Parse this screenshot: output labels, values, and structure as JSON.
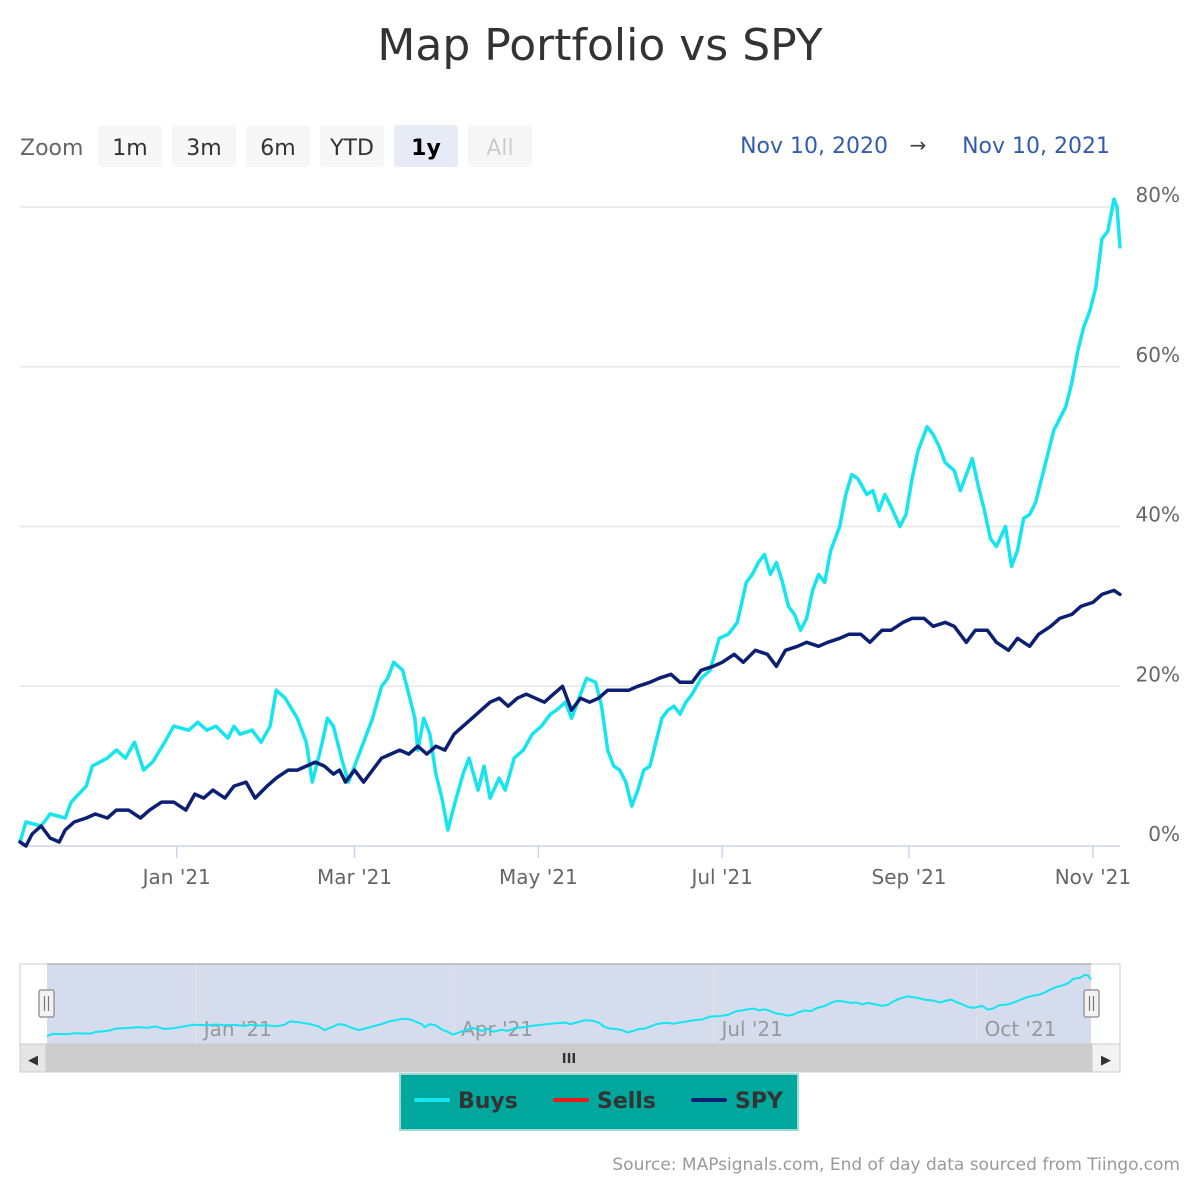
{
  "chart_data": {
    "type": "line",
    "title": "Map Portfolio vs SPY",
    "xlabel": "",
    "ylabel": "",
    "ylim": [
      0,
      80
    ],
    "y_ticks": [
      "0%",
      "20%",
      "40%",
      "60%",
      "80%"
    ],
    "x_ticks": [
      "Jan '21",
      "Mar '21",
      "May '21",
      "Jul '21",
      "Sep '21",
      "Nov '21"
    ],
    "legend_position": "bottom-center",
    "grid": true,
    "series": [
      {
        "name": "Buys",
        "color": "#15e5ee",
        "points": [
          [
            "2020-11-10",
            0.5
          ],
          [
            "2020-11-12",
            3
          ],
          [
            "2020-11-17",
            2.5
          ],
          [
            "2020-11-20",
            4
          ],
          [
            "2020-11-25",
            3.5
          ],
          [
            "2020-11-27",
            5.5
          ],
          [
            "2020-12-02",
            7.5
          ],
          [
            "2020-12-04",
            10
          ],
          [
            "2020-12-09",
            11
          ],
          [
            "2020-12-12",
            12
          ],
          [
            "2020-12-15",
            11
          ],
          [
            "2020-12-18",
            13
          ],
          [
            "2020-12-21",
            9.5
          ],
          [
            "2020-12-24",
            10.5
          ],
          [
            "2020-12-28",
            13
          ],
          [
            "2020-12-31",
            15
          ],
          [
            "2021-01-05",
            14.5
          ],
          [
            "2021-01-08",
            15.5
          ],
          [
            "2021-01-11",
            14.5
          ],
          [
            "2021-01-14",
            15
          ],
          [
            "2021-01-18",
            13.5
          ],
          [
            "2021-01-20",
            15
          ],
          [
            "2021-01-22",
            14
          ],
          [
            "2021-01-26",
            14.5
          ],
          [
            "2021-01-29",
            13
          ],
          [
            "2021-02-01",
            15
          ],
          [
            "2021-02-03",
            19.5
          ],
          [
            "2021-02-06",
            18.5
          ],
          [
            "2021-02-10",
            16
          ],
          [
            "2021-02-13",
            13
          ],
          [
            "2021-02-15",
            8
          ],
          [
            "2021-02-18",
            12.5
          ],
          [
            "2021-02-20",
            16
          ],
          [
            "2021-02-22",
            15
          ],
          [
            "2021-02-25",
            10.5
          ],
          [
            "2021-02-27",
            8
          ],
          [
            "2021-03-01",
            10
          ],
          [
            "2021-03-04",
            13
          ],
          [
            "2021-03-07",
            16
          ],
          [
            "2021-03-10",
            20
          ],
          [
            "2021-03-12",
            21
          ],
          [
            "2021-03-14",
            23
          ],
          [
            "2021-03-17",
            22
          ],
          [
            "2021-03-19",
            19
          ],
          [
            "2021-03-21",
            16
          ],
          [
            "2021-03-22",
            12
          ],
          [
            "2021-03-24",
            16
          ],
          [
            "2021-03-26",
            14
          ],
          [
            "2021-03-28",
            9
          ],
          [
            "2021-03-30",
            6
          ],
          [
            "2021-04-01",
            2
          ],
          [
            "2021-04-03",
            5
          ],
          [
            "2021-04-06",
            9
          ],
          [
            "2021-04-08",
            11
          ],
          [
            "2021-04-11",
            7
          ],
          [
            "2021-04-13",
            10
          ],
          [
            "2021-04-15",
            6
          ],
          [
            "2021-04-18",
            8.5
          ],
          [
            "2021-04-20",
            7
          ],
          [
            "2021-04-23",
            11
          ],
          [
            "2021-04-26",
            12
          ],
          [
            "2021-04-29",
            14
          ],
          [
            "2021-05-02",
            15
          ],
          [
            "2021-05-05",
            16.5
          ],
          [
            "2021-05-07",
            17
          ],
          [
            "2021-05-10",
            18
          ],
          [
            "2021-05-12",
            16
          ],
          [
            "2021-05-14",
            18
          ],
          [
            "2021-05-17",
            21
          ],
          [
            "2021-05-20",
            20.5
          ],
          [
            "2021-05-22",
            17.5
          ],
          [
            "2021-05-24",
            12
          ],
          [
            "2021-05-26",
            10
          ],
          [
            "2021-05-28",
            9.5
          ],
          [
            "2021-05-30",
            8
          ],
          [
            "2021-06-01",
            5
          ],
          [
            "2021-06-03",
            7
          ],
          [
            "2021-06-05",
            9.5
          ],
          [
            "2021-06-07",
            10
          ],
          [
            "2021-06-09",
            13
          ],
          [
            "2021-06-11",
            16
          ],
          [
            "2021-06-13",
            17
          ],
          [
            "2021-06-15",
            17.5
          ],
          [
            "2021-06-17",
            16.5
          ],
          [
            "2021-06-19",
            18
          ],
          [
            "2021-06-21",
            19
          ],
          [
            "2021-06-24",
            21
          ],
          [
            "2021-06-27",
            22
          ],
          [
            "2021-06-30",
            26
          ],
          [
            "2021-07-03",
            26.5
          ],
          [
            "2021-07-06",
            28
          ],
          [
            "2021-07-09",
            33
          ],
          [
            "2021-07-11",
            34
          ],
          [
            "2021-07-13",
            35.5
          ],
          [
            "2021-07-15",
            36.5
          ],
          [
            "2021-07-17",
            34
          ],
          [
            "2021-07-19",
            35.5
          ],
          [
            "2021-07-21",
            33
          ],
          [
            "2021-07-23",
            30
          ],
          [
            "2021-07-25",
            29
          ],
          [
            "2021-07-27",
            27
          ],
          [
            "2021-07-29",
            28.5
          ],
          [
            "2021-07-31",
            32
          ],
          [
            "2021-08-02",
            34
          ],
          [
            "2021-08-04",
            33
          ],
          [
            "2021-08-06",
            37
          ],
          [
            "2021-08-09",
            40
          ],
          [
            "2021-08-11",
            44
          ],
          [
            "2021-08-13",
            46.5
          ],
          [
            "2021-08-15",
            46
          ],
          [
            "2021-08-18",
            44
          ],
          [
            "2021-08-20",
            44.5
          ],
          [
            "2021-08-22",
            42
          ],
          [
            "2021-08-24",
            44
          ],
          [
            "2021-08-26",
            42.5
          ],
          [
            "2021-08-29",
            40
          ],
          [
            "2021-08-31",
            41.5
          ],
          [
            "2021-09-02",
            46
          ],
          [
            "2021-09-04",
            49.5
          ],
          [
            "2021-09-07",
            52.5
          ],
          [
            "2021-09-09",
            51.5
          ],
          [
            "2021-09-11",
            50
          ],
          [
            "2021-09-13",
            48
          ],
          [
            "2021-09-16",
            47
          ],
          [
            "2021-09-18",
            44.5
          ],
          [
            "2021-09-20",
            46.5
          ],
          [
            "2021-09-22",
            48.5
          ],
          [
            "2021-09-24",
            45
          ],
          [
            "2021-09-26",
            42
          ],
          [
            "2021-09-28",
            38.5
          ],
          [
            "2021-09-30",
            37.5
          ],
          [
            "2021-10-03",
            40
          ],
          [
            "2021-10-05",
            35
          ],
          [
            "2021-10-07",
            37
          ],
          [
            "2021-10-09",
            41
          ],
          [
            "2021-10-11",
            41.5
          ],
          [
            "2021-10-13",
            43
          ],
          [
            "2021-10-15",
            46
          ],
          [
            "2021-10-17",
            49
          ],
          [
            "2021-10-19",
            52
          ],
          [
            "2021-10-21",
            53.5
          ],
          [
            "2021-10-23",
            55
          ],
          [
            "2021-10-25",
            58
          ],
          [
            "2021-10-27",
            62
          ],
          [
            "2021-10-29",
            65
          ],
          [
            "2021-10-31",
            67
          ],
          [
            "2021-11-02",
            70
          ],
          [
            "2021-11-04",
            76
          ],
          [
            "2021-11-06",
            77
          ],
          [
            "2021-11-08",
            81
          ],
          [
            "2021-11-09",
            80
          ],
          [
            "2021-11-10",
            75
          ]
        ]
      },
      {
        "name": "Sells",
        "color": "#e81b1b",
        "points": []
      },
      {
        "name": "SPY",
        "color": "#0d1f73",
        "points": [
          [
            "2020-11-10",
            0.5
          ],
          [
            "2020-11-12",
            0
          ],
          [
            "2020-11-14",
            1.5
          ],
          [
            "2020-11-17",
            2.5
          ],
          [
            "2020-11-20",
            1
          ],
          [
            "2020-11-23",
            0.5
          ],
          [
            "2020-11-25",
            2
          ],
          [
            "2020-11-28",
            3
          ],
          [
            "2020-12-02",
            3.5
          ],
          [
            "2020-12-05",
            4
          ],
          [
            "2020-12-09",
            3.5
          ],
          [
            "2020-12-12",
            4.5
          ],
          [
            "2020-12-16",
            4.5
          ],
          [
            "2020-12-20",
            3.5
          ],
          [
            "2020-12-23",
            4.5
          ],
          [
            "2020-12-27",
            5.5
          ],
          [
            "2020-12-31",
            5.5
          ],
          [
            "2021-01-04",
            4.5
          ],
          [
            "2021-01-07",
            6.5
          ],
          [
            "2021-01-10",
            6
          ],
          [
            "2021-01-13",
            7
          ],
          [
            "2021-01-17",
            6
          ],
          [
            "2021-01-20",
            7.5
          ],
          [
            "2021-01-24",
            8
          ],
          [
            "2021-01-27",
            6
          ],
          [
            "2021-01-31",
            7.5
          ],
          [
            "2021-02-03",
            8.5
          ],
          [
            "2021-02-07",
            9.5
          ],
          [
            "2021-02-10",
            9.5
          ],
          [
            "2021-02-13",
            10
          ],
          [
            "2021-02-16",
            10.5
          ],
          [
            "2021-02-19",
            10
          ],
          [
            "2021-02-22",
            9
          ],
          [
            "2021-02-24",
            9.5
          ],
          [
            "2021-02-26",
            8
          ],
          [
            "2021-03-01",
            9.5
          ],
          [
            "2021-03-04",
            8
          ],
          [
            "2021-03-07",
            9.5
          ],
          [
            "2021-03-10",
            11
          ],
          [
            "2021-03-13",
            11.5
          ],
          [
            "2021-03-16",
            12
          ],
          [
            "2021-03-19",
            11.5
          ],
          [
            "2021-03-22",
            12.5
          ],
          [
            "2021-03-25",
            11.5
          ],
          [
            "2021-03-28",
            12.5
          ],
          [
            "2021-03-31",
            12
          ],
          [
            "2021-04-03",
            14
          ],
          [
            "2021-04-06",
            15
          ],
          [
            "2021-04-09",
            16
          ],
          [
            "2021-04-12",
            17
          ],
          [
            "2021-04-15",
            18
          ],
          [
            "2021-04-18",
            18.5
          ],
          [
            "2021-04-21",
            17.5
          ],
          [
            "2021-04-24",
            18.5
          ],
          [
            "2021-04-27",
            19
          ],
          [
            "2021-04-30",
            18.5
          ],
          [
            "2021-05-03",
            18
          ],
          [
            "2021-05-06",
            19
          ],
          [
            "2021-05-09",
            20
          ],
          [
            "2021-05-12",
            17
          ],
          [
            "2021-05-15",
            18.5
          ],
          [
            "2021-05-18",
            18
          ],
          [
            "2021-05-21",
            18.5
          ],
          [
            "2021-05-24",
            19.5
          ],
          [
            "2021-05-27",
            19.5
          ],
          [
            "2021-05-31",
            19.5
          ],
          [
            "2021-06-03",
            20
          ],
          [
            "2021-06-07",
            20.5
          ],
          [
            "2021-06-10",
            21
          ],
          [
            "2021-06-14",
            21.5
          ],
          [
            "2021-06-17",
            20.5
          ],
          [
            "2021-06-21",
            20.5
          ],
          [
            "2021-06-24",
            22
          ],
          [
            "2021-06-28",
            22.5
          ],
          [
            "2021-07-01",
            23
          ],
          [
            "2021-07-05",
            24
          ],
          [
            "2021-07-08",
            23
          ],
          [
            "2021-07-12",
            24.5
          ],
          [
            "2021-07-16",
            24
          ],
          [
            "2021-07-19",
            22.5
          ],
          [
            "2021-07-22",
            24.5
          ],
          [
            "2021-07-26",
            25
          ],
          [
            "2021-07-29",
            25.5
          ],
          [
            "2021-08-02",
            25
          ],
          [
            "2021-08-05",
            25.5
          ],
          [
            "2021-08-09",
            26
          ],
          [
            "2021-08-12",
            26.5
          ],
          [
            "2021-08-16",
            26.5
          ],
          [
            "2021-08-19",
            25.5
          ],
          [
            "2021-08-23",
            27
          ],
          [
            "2021-08-26",
            27
          ],
          [
            "2021-08-30",
            28
          ],
          [
            "2021-09-02",
            28.5
          ],
          [
            "2021-09-06",
            28.5
          ],
          [
            "2021-09-09",
            27.5
          ],
          [
            "2021-09-13",
            28
          ],
          [
            "2021-09-16",
            27.5
          ],
          [
            "2021-09-20",
            25.5
          ],
          [
            "2021-09-23",
            27
          ],
          [
            "2021-09-27",
            27
          ],
          [
            "2021-09-30",
            25.5
          ],
          [
            "2021-10-04",
            24.5
          ],
          [
            "2021-10-07",
            26
          ],
          [
            "2021-10-11",
            25
          ],
          [
            "2021-10-14",
            26.5
          ],
          [
            "2021-10-18",
            27.5
          ],
          [
            "2021-10-21",
            28.5
          ],
          [
            "2021-10-25",
            29
          ],
          [
            "2021-10-28",
            30
          ],
          [
            "2021-11-01",
            30.5
          ],
          [
            "2021-11-04",
            31.5
          ],
          [
            "2021-11-08",
            32
          ],
          [
            "2021-11-10",
            31.5
          ]
        ]
      }
    ],
    "navigator": {
      "x_ticks": [
        "Jan '21",
        "Apr '21",
        "Jul '21",
        "Oct '21"
      ],
      "series": "Buys"
    }
  },
  "range_selector": {
    "zoom_label": "Zoom",
    "buttons": [
      {
        "label": "1m",
        "state": "normal"
      },
      {
        "label": "3m",
        "state": "normal"
      },
      {
        "label": "6m",
        "state": "normal"
      },
      {
        "label": "YTD",
        "state": "normal"
      },
      {
        "label": "1y",
        "state": "active"
      },
      {
        "label": "All",
        "state": "disabled"
      }
    ],
    "from_date": "Nov 10, 2020",
    "arrow": "→",
    "to_date": "Nov 10, 2021"
  },
  "legend": {
    "background": "#00a79d",
    "items": [
      "Buys",
      "Sells",
      "SPY"
    ]
  },
  "source": "Source: MAPsignals.com, End of day data sourced from Tiingo.com",
  "scrollbar": {
    "grip_icon": "III",
    "left_arrow": "◀",
    "right_arrow": "▶"
  }
}
